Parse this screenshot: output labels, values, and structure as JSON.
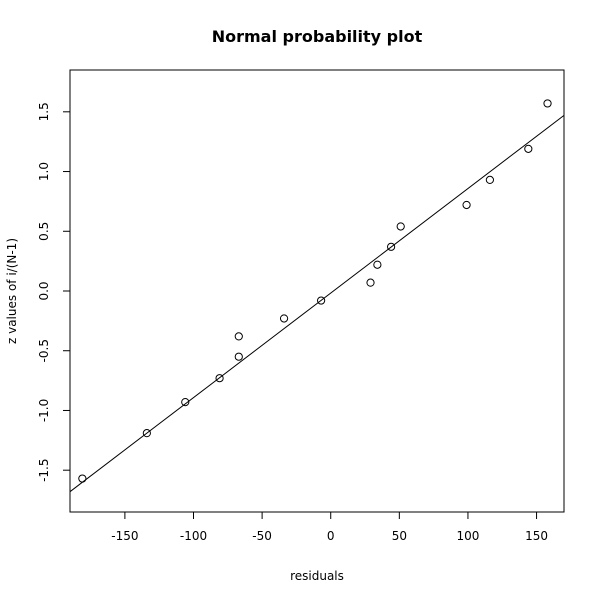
{
  "chart_data": {
    "type": "scatter",
    "title": "Normal probability plot",
    "xlabel": "residuals",
    "ylabel": "z values of i/(N-1)",
    "xlim": [
      -190,
      170
    ],
    "ylim": [
      -1.85,
      1.85
    ],
    "x_ticks": [
      -150,
      -100,
      -50,
      0,
      50,
      100,
      150
    ],
    "x_tick_labels": [
      "-150",
      "-100",
      "-50",
      "0",
      "50",
      "100",
      "150"
    ],
    "y_ticks": [
      -1.5,
      -1.0,
      -0.5,
      0.0,
      0.5,
      1.0,
      1.5
    ],
    "y_tick_labels": [
      "-1.5",
      "-1.0",
      "-0.5",
      "0.0",
      "0.5",
      "1.0",
      "1.5"
    ],
    "grid": false,
    "legend": "none",
    "points": [
      {
        "x": -181,
        "y": -1.57
      },
      {
        "x": -134,
        "y": -1.19
      },
      {
        "x": -106,
        "y": -0.93
      },
      {
        "x": -81,
        "y": -0.73
      },
      {
        "x": -67,
        "y": -0.55
      },
      {
        "x": -67,
        "y": -0.38
      },
      {
        "x": -34,
        "y": -0.23
      },
      {
        "x": -7,
        "y": -0.08
      },
      {
        "x": 29,
        "y": 0.07
      },
      {
        "x": 34,
        "y": 0.22
      },
      {
        "x": 44,
        "y": 0.37
      },
      {
        "x": 51,
        "y": 0.54
      },
      {
        "x": 99,
        "y": 0.72
      },
      {
        "x": 116,
        "y": 0.93
      },
      {
        "x": 144,
        "y": 1.19
      },
      {
        "x": 158,
        "y": 1.57
      }
    ],
    "fit_line": [
      {
        "x": -190,
        "y": -1.68
      },
      {
        "x": 170,
        "y": 1.47
      }
    ]
  }
}
